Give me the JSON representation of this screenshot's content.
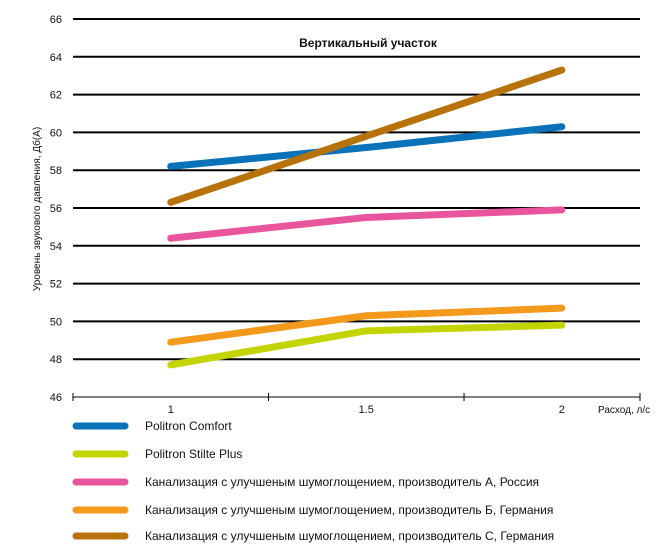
{
  "chart_data": {
    "type": "line",
    "title": "Вертикальный  участок",
    "ylabel": "Уровень звукового давления, Дб(А)",
    "xlabel": "Расход, л/с",
    "x": [
      1,
      1.5,
      2
    ],
    "x_tick_labels": [
      "1",
      "1.5",
      "2"
    ],
    "ylim": [
      46,
      66
    ],
    "y_ticks": [
      46,
      48,
      50,
      52,
      54,
      56,
      58,
      60,
      62,
      64,
      66
    ],
    "grid": "horizontal",
    "legend_position": "bottom",
    "series": [
      {
        "name": "Politron Comfort",
        "values": [
          58.2,
          59.2,
          60.3
        ],
        "color": "#0a72b8"
      },
      {
        "name": "Politron Stilte Plus",
        "values": [
          47.7,
          49.5,
          49.8
        ],
        "color": "#c3d400"
      },
      {
        "name": "Канализация с улучшеным шумоглощением, производитель А, Россия",
        "values": [
          54.4,
          55.5,
          55.9
        ],
        "color": "#e8559c"
      },
      {
        "name": "Канализация с улучшеным шумоглощением, производитель Б, Германия",
        "values": [
          48.9,
          50.3,
          50.7
        ],
        "color": "#f39a1c"
      },
      {
        "name": "Канализация с улучшеным шумоглощением, производитель С, Германия",
        "values": [
          56.3,
          59.8,
          63.3
        ],
        "color": "#b8720a"
      }
    ]
  }
}
